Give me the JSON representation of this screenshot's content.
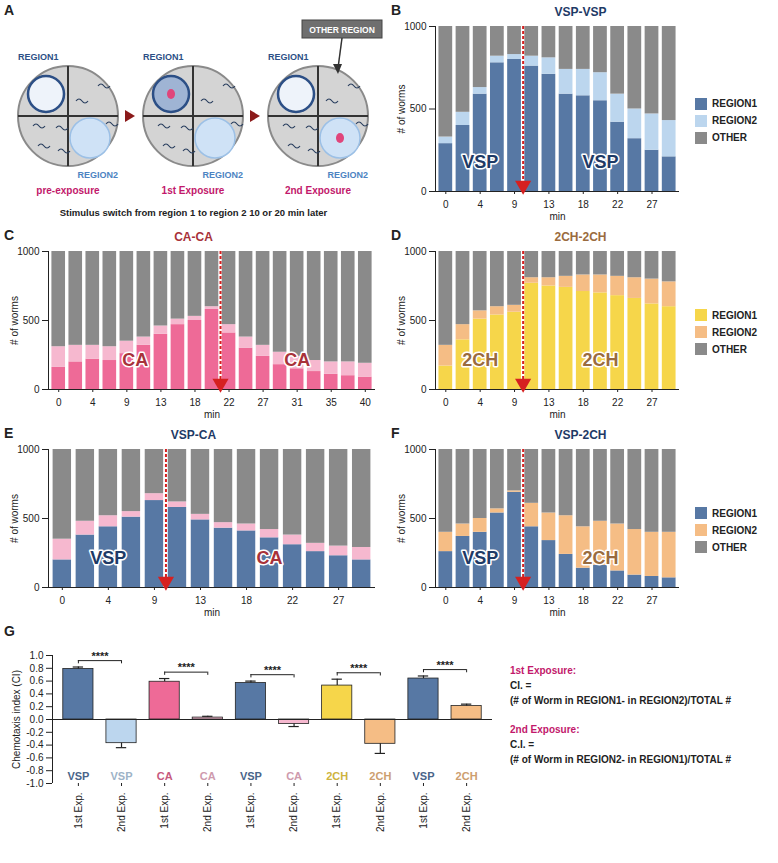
{
  "diagram": {
    "panel": "A",
    "region1_label": "REGION1",
    "region2_label": "REGION2",
    "other_label": "OTHER REGION",
    "stages": [
      "pre-exposure",
      "1st Exposure",
      "2nd Exposure"
    ],
    "caption": "Stimulus switch from region 1 to region 2 10 or 20 min later"
  },
  "chart_data": [
    {
      "panel": "B",
      "type": "bar",
      "stacked": true,
      "title": "VSP-VSP",
      "x_label": "min",
      "y_label": "# of worms",
      "categories": [
        "0",
        null,
        "4",
        null,
        "9",
        null,
        "13",
        null,
        "18",
        null,
        "22",
        null,
        "27",
        null
      ],
      "ylim": [
        0,
        1000
      ],
      "yticks": [
        0,
        500,
        1000
      ],
      "legend": "right",
      "switch_after": 5,
      "annotations": [
        {
          "text": "VSP",
          "color": "#1e3a66",
          "phase": 1
        },
        {
          "text": "VSP",
          "color": "#1e3a66",
          "phase": 2
        }
      ],
      "series": [
        {
          "name": "REGION1",
          "color": "#5778a4",
          "values": [
            290,
            400,
            590,
            780,
            800,
            760,
            710,
            590,
            580,
            550,
            420,
            320,
            250,
            210
          ]
        },
        {
          "name": "REGION2",
          "color": "#bcd6ee",
          "values": [
            40,
            80,
            40,
            40,
            30,
            60,
            100,
            150,
            160,
            170,
            170,
            180,
            220,
            220
          ]
        },
        {
          "name": "OTHER",
          "color": "#8a8a8a",
          "values": [
            670,
            520,
            370,
            180,
            170,
            180,
            190,
            260,
            260,
            280,
            410,
            500,
            530,
            570
          ]
        }
      ]
    },
    {
      "panel": "C",
      "type": "bar",
      "stacked": true,
      "title": "CA-CA",
      "x_label": "min",
      "y_label": "# of worms",
      "categories": [
        "0",
        null,
        "4",
        null,
        "9",
        null,
        "13",
        null,
        "18",
        null,
        "22",
        null,
        "27",
        null,
        "31",
        null,
        "35",
        null,
        "40"
      ],
      "ylim": [
        0,
        1000
      ],
      "yticks": [
        0,
        500,
        1000
      ],
      "switch_after": 10,
      "annotations": [
        {
          "text": "CA",
          "color": "#a8323a",
          "phase": 1
        },
        {
          "text": "CA",
          "color": "#a8323a",
          "phase": 2
        }
      ],
      "series": [
        {
          "name": "REGION1",
          "color": "#ee6a97",
          "values": [
            160,
            200,
            220,
            210,
            260,
            320,
            400,
            470,
            500,
            580,
            410,
            300,
            240,
            180,
            150,
            130,
            110,
            100,
            90
          ]
        },
        {
          "name": "REGION2",
          "color": "#f6b8cf",
          "values": [
            150,
            120,
            100,
            100,
            90,
            60,
            60,
            40,
            30,
            20,
            60,
            80,
            80,
            90,
            90,
            80,
            90,
            100,
            100
          ]
        },
        {
          "name": "OTHER",
          "color": "#8a8a8a",
          "values": [
            690,
            680,
            680,
            690,
            650,
            620,
            540,
            490,
            470,
            400,
            530,
            620,
            680,
            730,
            760,
            790,
            800,
            800,
            810
          ]
        }
      ]
    },
    {
      "panel": "D",
      "type": "bar",
      "stacked": true,
      "title": "2CH-2CH",
      "x_label": "min",
      "y_label": "# of worms",
      "categories": [
        "0",
        null,
        "4",
        null,
        "9",
        null,
        "13",
        null,
        "18",
        null,
        "22",
        null,
        "27",
        null
      ],
      "ylim": [
        0,
        1000
      ],
      "yticks": [
        0,
        500,
        1000
      ],
      "legend": "right",
      "switch_after": 5,
      "annotations": [
        {
          "text": "2CH",
          "color": "#9a6b3e",
          "phase": 1
        },
        {
          "text": "2CH",
          "color": "#9a6b3e",
          "phase": 2
        }
      ],
      "series": [
        {
          "name": "REGION1",
          "color": "#f6d64a",
          "values": [
            170,
            360,
            510,
            540,
            560,
            770,
            750,
            740,
            710,
            700,
            680,
            660,
            620,
            600
          ]
        },
        {
          "name": "REGION2",
          "color": "#f5bd85",
          "values": [
            150,
            110,
            60,
            60,
            50,
            40,
            60,
            80,
            120,
            130,
            140,
            150,
            180,
            180
          ]
        },
        {
          "name": "OTHER",
          "color": "#8a8a8a",
          "values": [
            680,
            530,
            430,
            400,
            390,
            190,
            190,
            180,
            170,
            170,
            180,
            190,
            200,
            220
          ]
        }
      ]
    },
    {
      "panel": "E",
      "type": "bar",
      "stacked": true,
      "title": "VSP-CA",
      "x_label": "min",
      "y_label": "# of worms",
      "categories": [
        "0",
        null,
        "4",
        null,
        "9",
        null,
        "13",
        null,
        "18",
        null,
        "22",
        null,
        "27",
        null
      ],
      "ylim": [
        0,
        1000
      ],
      "yticks": [
        0,
        500,
        1000
      ],
      "switch_after": 5,
      "annotations": [
        {
          "text": "VSP",
          "color": "#1e3a66",
          "phase": 1
        },
        {
          "text": "CA",
          "color": "#a8323a",
          "phase": 2
        }
      ],
      "series": [
        {
          "name": "REGION1",
          "color": "#5778a4",
          "values": [
            200,
            380,
            440,
            510,
            630,
            580,
            490,
            430,
            410,
            360,
            310,
            260,
            230,
            200
          ]
        },
        {
          "name": "REGION2",
          "color": "#f6b8cf",
          "values": [
            150,
            100,
            80,
            40,
            50,
            40,
            40,
            40,
            50,
            60,
            70,
            60,
            70,
            90
          ]
        },
        {
          "name": "OTHER",
          "color": "#8a8a8a",
          "values": [
            650,
            520,
            480,
            450,
            320,
            380,
            470,
            530,
            540,
            580,
            620,
            680,
            700,
            710
          ]
        }
      ]
    },
    {
      "panel": "F",
      "type": "bar",
      "stacked": true,
      "title": "VSP-2CH",
      "x_label": "min",
      "y_label": "# of worms",
      "categories": [
        "0",
        null,
        "4",
        null,
        "9",
        null,
        "13",
        null,
        "18",
        null,
        "22",
        null,
        "27",
        null
      ],
      "ylim": [
        0,
        1000
      ],
      "yticks": [
        0,
        500,
        1000
      ],
      "legend": "right",
      "switch_after": 5,
      "annotations": [
        {
          "text": "VSP",
          "color": "#1e3a66",
          "phase": 1
        },
        {
          "text": "2CH",
          "color": "#9a6b3e",
          "phase": 2
        }
      ],
      "series": [
        {
          "name": "REGION1",
          "color": "#5778a4",
          "values": [
            260,
            370,
            400,
            540,
            690,
            440,
            340,
            240,
            140,
            160,
            120,
            90,
            80,
            70
          ]
        },
        {
          "name": "REGION2",
          "color": "#f5bd85",
          "values": [
            140,
            90,
            100,
            30,
            10,
            170,
            200,
            280,
            300,
            320,
            340,
            330,
            320,
            330
          ]
        },
        {
          "name": "OTHER",
          "color": "#8a8a8a",
          "values": [
            600,
            540,
            500,
            430,
            300,
            390,
            460,
            480,
            560,
            520,
            540,
            580,
            600,
            600
          ]
        }
      ]
    },
    {
      "panel": "G",
      "type": "bar",
      "y_label": "Chemotaxis index (CI)",
      "categories": [
        "1st Exp.",
        "2nd Exp.",
        "1st Exp.",
        "2nd Exp.",
        "1st Exp.",
        "2nd Exp.",
        "1st Exp.",
        "2nd Exp.",
        "1st Exp.",
        "2nd Exp."
      ],
      "stimuli": [
        "VSP",
        "VSP",
        "CA",
        "CA",
        "VSP",
        "CA",
        "2CH",
        "2CH",
        "VSP",
        "2CH"
      ],
      "values": [
        0.79,
        -0.37,
        0.59,
        0.03,
        0.57,
        -0.07,
        0.53,
        -0.38,
        0.64,
        0.21
      ],
      "errors": [
        0.03,
        0.07,
        0.05,
        0.02,
        0.03,
        0.04,
        0.1,
        0.15,
        0.04,
        0.03
      ],
      "colors": [
        "#5778a4",
        "#bcd6ee",
        "#ee6a97",
        "#f6b8cf",
        "#5778a4",
        "#f6b8cf",
        "#f6d64a",
        "#f5bd85",
        "#5778a4",
        "#f5bd85"
      ],
      "ylim": [
        -1,
        1
      ],
      "yticks": [
        {
          "value": -1,
          "label": "-1.0"
        },
        -0.8,
        -0.6,
        -0.4,
        -0.2,
        {
          "value": 0,
          "label": "0.0"
        },
        0.2,
        0.4,
        0.6,
        0.8,
        {
          "value": 1,
          "label": "1.0"
        }
      ],
      "significance": [
        {
          "pair": [
            0,
            1
          ],
          "label": "****"
        },
        {
          "pair": [
            2,
            3
          ],
          "label": "****"
        },
        {
          "pair": [
            4,
            5
          ],
          "label": "****"
        },
        {
          "pair": [
            6,
            7
          ],
          "label": "****"
        },
        {
          "pair": [
            8,
            9
          ],
          "label": "****"
        }
      ],
      "formulas": [
        {
          "heading": "1st Exposure:",
          "lhs": "CI. =",
          "expression": "(# of Worm in REGION1- in REGION2)/TOTAL #"
        },
        {
          "heading": "2nd Exposure:",
          "lhs": "C.I. =",
          "expression": "(# of Worm in REGION2- in REGION1)/TOTAL #"
        }
      ]
    }
  ]
}
